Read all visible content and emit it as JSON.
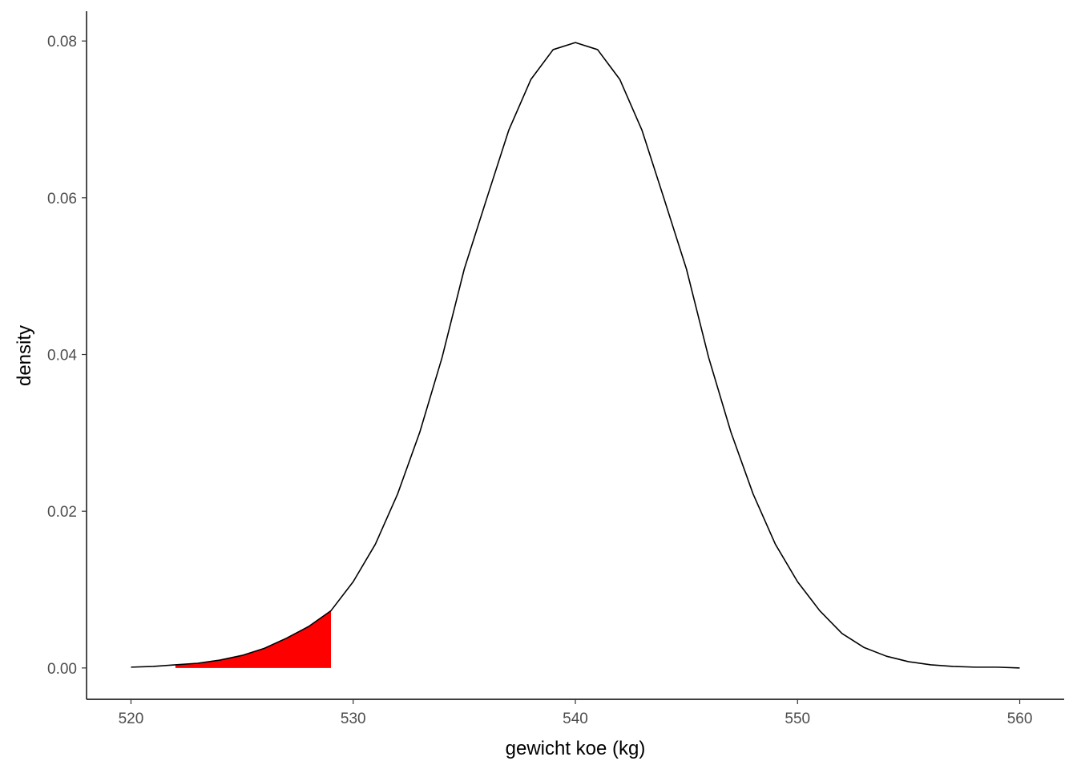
{
  "chart_data": {
    "type": "area",
    "title": "",
    "xlabel": "gewicht koe (kg)",
    "ylabel": "density",
    "xlim": [
      518,
      562
    ],
    "ylim": [
      -0.004,
      0.0838
    ],
    "x_ticks": [
      520,
      530,
      540,
      550,
      560
    ],
    "x_tick_labels": [
      "520",
      "530",
      "540",
      "550",
      "560"
    ],
    "y_ticks": [
      0.0,
      0.02,
      0.04,
      0.06,
      0.08
    ],
    "y_tick_labels": [
      "0.00",
      "0.02",
      "0.04",
      "0.06",
      "0.08"
    ],
    "grid": false,
    "series": [
      {
        "x": [
          520,
          521,
          522,
          523,
          524,
          525,
          526,
          527,
          528,
          529,
          530,
          531,
          532,
          533,
          534,
          535,
          536,
          537,
          538,
          539,
          540,
          541,
          542,
          543,
          544,
          545,
          546,
          547,
          548,
          549,
          550,
          551,
          552,
          553,
          554,
          555,
          556,
          557,
          558,
          559,
          560
        ],
        "values": [
          0.0001,
          0.0002,
          0.0004,
          0.0006,
          0.001,
          0.0016,
          0.0025,
          0.0038,
          0.0053,
          0.0073,
          0.011,
          0.0158,
          0.0222,
          0.0301,
          0.0396,
          0.0509,
          0.0598,
          0.0686,
          0.0751,
          0.0789,
          0.0798,
          0.0789,
          0.0751,
          0.0686,
          0.0598,
          0.0509,
          0.0396,
          0.0301,
          0.0222,
          0.0158,
          0.011,
          0.0073,
          0.0044,
          0.0026,
          0.0015,
          0.0008,
          0.0004,
          0.0002,
          0.0001,
          0.0001,
          0.0
        ],
        "color": "#000000"
      }
    ],
    "shaded_region": {
      "x_from": 522,
      "x_to": 529,
      "color": "#ff0000"
    }
  }
}
